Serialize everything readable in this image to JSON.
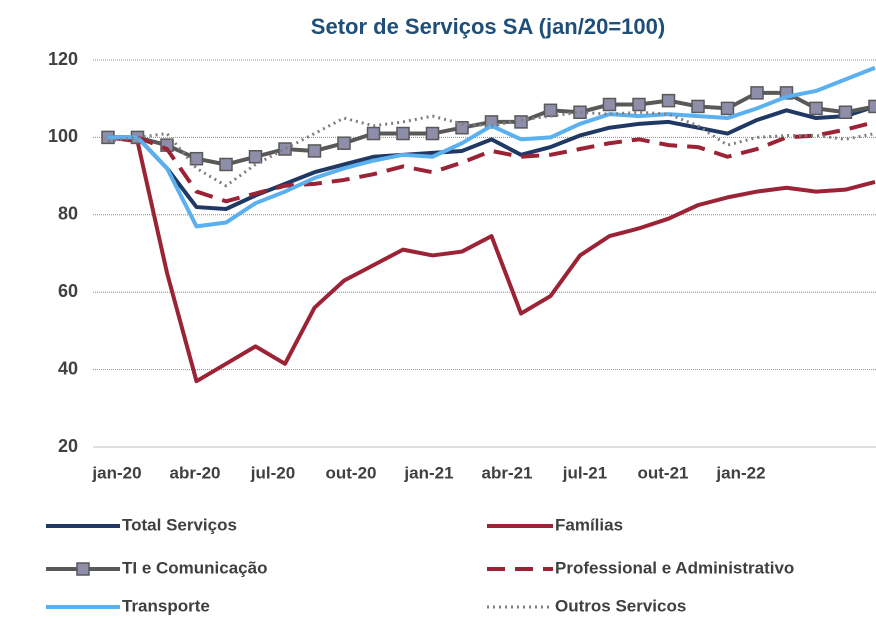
{
  "chart_data": {
    "type": "line",
    "title": "Setor de Serviços SA (jan/20=100)",
    "categories": [
      "jan-20",
      null,
      null,
      "abr-20",
      null,
      null,
      "jul-20",
      null,
      null,
      "out-20",
      null,
      null,
      "jan-21",
      null,
      null,
      "abr-21",
      null,
      null,
      "jul-21",
      null,
      null,
      "out-21",
      null,
      null,
      "jan-22",
      null,
      null
    ],
    "series": [
      {
        "name": "Total Serviços",
        "color": "#1f3864",
        "dash": "solid",
        "values": [
          100,
          100,
          92,
          82,
          81.5,
          85,
          88,
          91,
          93,
          95,
          95.5,
          96,
          96.5,
          99.5,
          95.5,
          97.5,
          100.5,
          102.5,
          103.5,
          104,
          102.5,
          101,
          104.5,
          107,
          105,
          105.5,
          108
        ]
      },
      {
        "name": "Famílias",
        "color": "#9b2335",
        "dash": "solid",
        "values": [
          100,
          99,
          65,
          37,
          41.5,
          46,
          41.5,
          56,
          63,
          67,
          71,
          69.5,
          70.5,
          74.5,
          54.5,
          59,
          69.5,
          74.5,
          76.5,
          79,
          82.5,
          84.5,
          86,
          87,
          86,
          86.5,
          88.5
        ]
      },
      {
        "name": "TI e Comunicação",
        "color": "#595959",
        "dash": "solid",
        "marker": "square",
        "marker_color": "#8e8eab",
        "values": [
          100,
          100,
          98,
          94.5,
          93,
          95,
          97,
          96.5,
          98.5,
          101,
          101,
          101,
          102.5,
          104,
          104,
          107,
          106.5,
          108.5,
          108.5,
          109.5,
          108,
          107.5,
          111.5,
          111.5,
          107.5,
          106.5,
          108
        ]
      },
      {
        "name": "Professional e Administrativo",
        "color": "#9b2335",
        "dash": "dash",
        "values": [
          100,
          100,
          97,
          86,
          83.5,
          85.5,
          87.5,
          88,
          89,
          90.5,
          92.5,
          91,
          93.5,
          96.5,
          95,
          95.5,
          97,
          98.5,
          99.5,
          98,
          97.5,
          95,
          97,
          100,
          100.5,
          102,
          104
        ]
      },
      {
        "name": "Transporte",
        "color": "#5bb0f0",
        "dash": "solid",
        "values": [
          100,
          100,
          92,
          77,
          78,
          83,
          86,
          89.5,
          92,
          94,
          95.5,
          95,
          98.5,
          103,
          99.5,
          100,
          103.5,
          106,
          105.5,
          106,
          105.5,
          105,
          107.5,
          110.5,
          112,
          115,
          118
        ]
      },
      {
        "name": "Outros Servicos",
        "color": "#7f7f7f",
        "dash": "dot",
        "values": [
          99,
          100,
          101,
          92,
          87.5,
          93,
          97,
          101,
          105,
          103,
          104,
          105.5,
          103.5,
          103,
          104.5,
          105.5,
          106.5,
          106,
          106.5,
          106,
          103,
          98,
          100,
          100.5,
          100.5,
          99.5,
          101
        ]
      }
    ],
    "ylim": [
      20,
      120
    ],
    "yticks": [
      20,
      40,
      60,
      80,
      100,
      120
    ],
    "grid": true,
    "legend": "bottom"
  }
}
